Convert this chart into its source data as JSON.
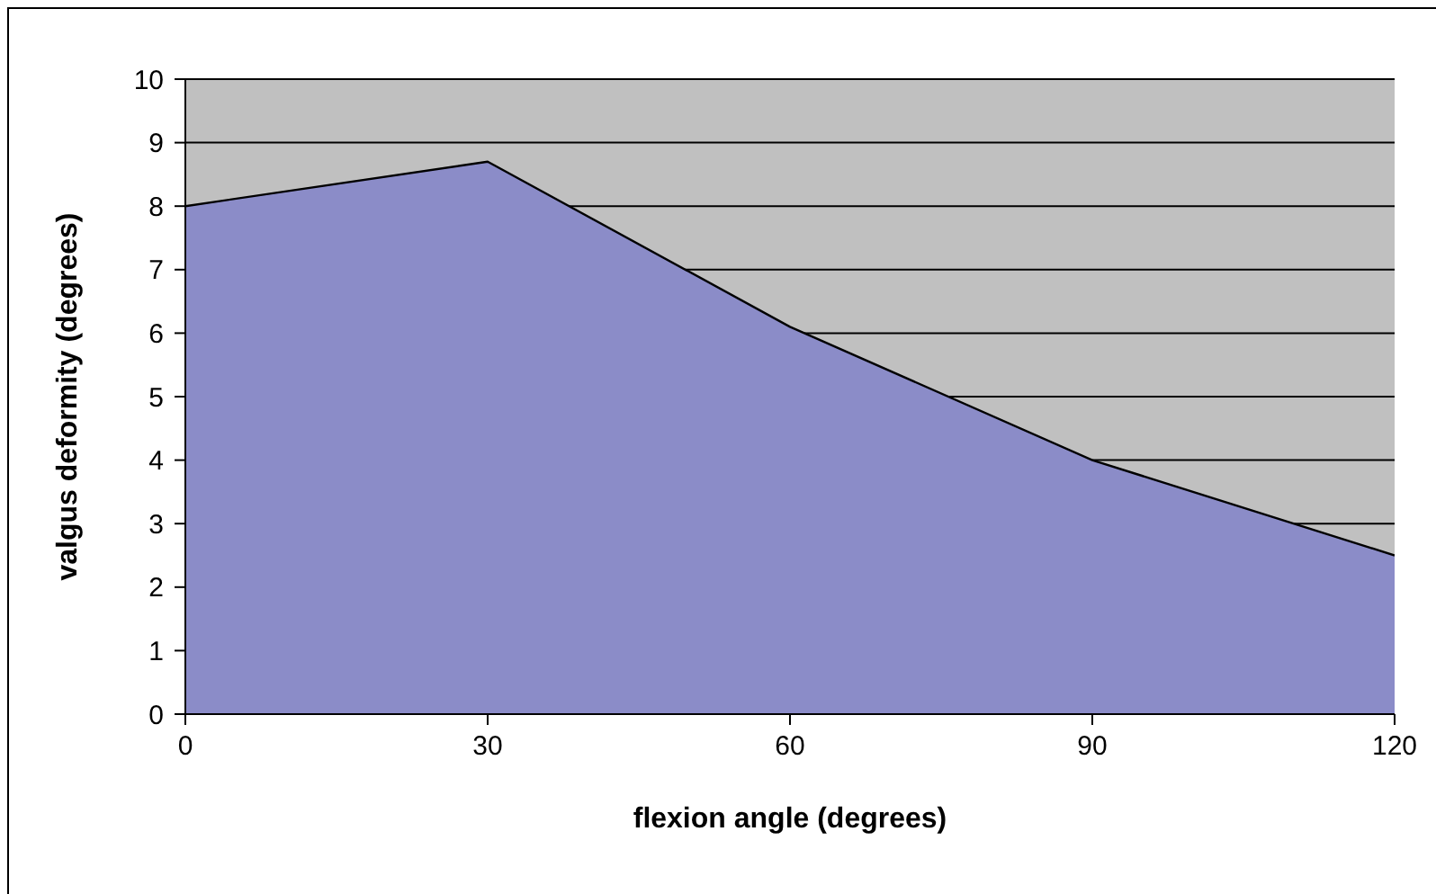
{
  "chart_data": {
    "type": "area",
    "xlabel": "flexion angle (degrees)",
    "ylabel": "valgus deformity (degrees)",
    "x": [
      0,
      30,
      60,
      90,
      120
    ],
    "series": [
      {
        "color": "#8b8cc8",
        "values": [
          8,
          8.7,
          6.1,
          4,
          2.5
        ]
      }
    ],
    "xlim": [
      0,
      120
    ],
    "xticks": [
      0,
      30,
      60,
      90,
      120
    ],
    "ylim": [
      0,
      10
    ],
    "yticks": [
      0,
      1,
      2,
      3,
      4,
      5,
      6,
      7,
      8,
      9,
      10
    ],
    "grid": "y",
    "legend": false
  }
}
